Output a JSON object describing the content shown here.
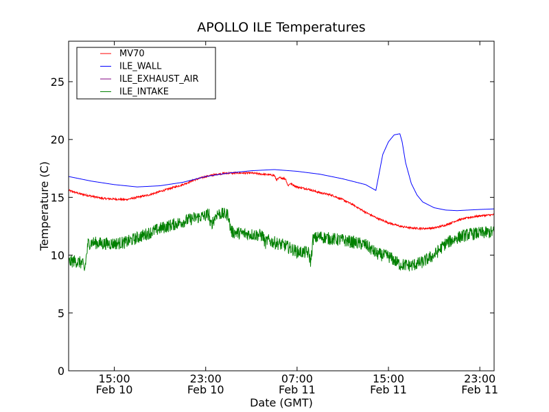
{
  "chart_data": {
    "type": "line",
    "title": "APOLLO ILE Temperatures",
    "xlabel": "Date (GMT)",
    "ylabel": "Temperature (C)",
    "x_unit": "hours since Feb 10 11:00 GMT",
    "xlim": [
      0,
      37.25
    ],
    "ylim": [
      0,
      28.5
    ],
    "yticks": [
      0,
      5,
      10,
      15,
      20,
      25
    ],
    "xticks": [
      {
        "x": 4,
        "time": "15:00",
        "date": "Feb 10"
      },
      {
        "x": 12,
        "time": "23:00",
        "date": "Feb 10"
      },
      {
        "x": 20,
        "time": "07:00",
        "date": "Feb 11"
      },
      {
        "x": 28,
        "time": "15:00",
        "date": "Feb 11"
      },
      {
        "x": 36,
        "time": "23:00",
        "date": "Feb 11"
      }
    ],
    "legend_position": "top-left",
    "series": [
      {
        "name": "MV70",
        "color": "#ff0000",
        "noise": 0.08,
        "x": [
          0,
          1,
          3,
          5,
          7,
          9,
          10,
          11,
          12,
          13,
          14,
          15,
          16,
          17,
          18,
          18.2,
          18.5,
          19,
          19.2,
          19.4,
          20,
          21,
          22,
          23,
          24,
          25,
          26,
          27,
          28,
          29,
          30,
          31,
          32,
          33,
          34,
          35,
          36,
          37.25
        ],
        "y": [
          15.6,
          15.3,
          14.9,
          14.8,
          15.2,
          15.8,
          16.1,
          16.5,
          16.8,
          17.0,
          17.1,
          17.1,
          17.1,
          17.0,
          16.9,
          16.5,
          16.7,
          16.6,
          16.0,
          16.2,
          15.9,
          15.7,
          15.4,
          15.2,
          14.8,
          14.3,
          13.7,
          13.2,
          12.8,
          12.5,
          12.35,
          12.3,
          12.35,
          12.6,
          13.0,
          13.25,
          13.4,
          13.5
        ]
      },
      {
        "name": "ILE_WALL",
        "color": "#0000ff",
        "noise": 0,
        "x": [
          0,
          2,
          4,
          6,
          8,
          10,
          12,
          14,
          16,
          18,
          20,
          22,
          24,
          26,
          26.9,
          27.5,
          28,
          28.5,
          29.0,
          29.2,
          29.5,
          30,
          30.5,
          31,
          32,
          33,
          34,
          35,
          36,
          37.25
        ],
        "y": [
          16.8,
          16.4,
          16.1,
          15.9,
          16.0,
          16.3,
          16.8,
          17.1,
          17.3,
          17.4,
          17.25,
          17.0,
          16.6,
          16.1,
          15.6,
          18.7,
          19.8,
          20.4,
          20.5,
          19.8,
          18.0,
          16.2,
          15.2,
          14.6,
          14.1,
          13.9,
          13.85,
          13.9,
          13.95,
          14.0
        ]
      },
      {
        "name": "ILE_EXHAUST_AIR",
        "color": "#800080",
        "noise": 0,
        "x": [],
        "y": []
      },
      {
        "name": "ILE_INTAKE",
        "color": "#008000",
        "noise": 0.55,
        "x": [
          0,
          0.5,
          1.2,
          1.4,
          1.5,
          1.7,
          2,
          3,
          4,
          5,
          6,
          7,
          8,
          9,
          10,
          11,
          12,
          12.3,
          12.4,
          13,
          14,
          14.1,
          14.3,
          15,
          16,
          17,
          17.2,
          17.4,
          18,
          19,
          20,
          21,
          21.2,
          21.4,
          22,
          23,
          24,
          25,
          26,
          26.5,
          27,
          28,
          29,
          30,
          31,
          32,
          33,
          34,
          35,
          36,
          37.25
        ],
        "y": [
          9.4,
          9.5,
          9.3,
          8.7,
          9.5,
          11.0,
          11.1,
          11.0,
          11.0,
          11.1,
          11.5,
          11.9,
          12.3,
          12.6,
          12.9,
          13.2,
          13.4,
          13.6,
          12.5,
          13.6,
          13.5,
          12.6,
          12.0,
          11.9,
          11.8,
          11.7,
          11.0,
          11.3,
          11.1,
          10.8,
          10.3,
          10.2,
          9.4,
          11.4,
          11.6,
          11.4,
          11.3,
          11.1,
          10.9,
          10.5,
          10.1,
          9.9,
          9.2,
          9.1,
          9.4,
          10.0,
          11.0,
          11.5,
          11.8,
          11.9,
          12.0
        ]
      }
    ]
  }
}
